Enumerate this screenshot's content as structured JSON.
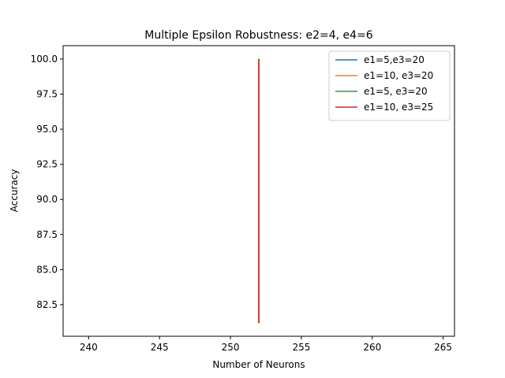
{
  "chart_data": {
    "type": "line",
    "title": "Multiple Epsilon Robustness: e2=4, e4=6",
    "xlabel": "Number of Neurons",
    "ylabel": "Accuracy",
    "xlim": [
      238.2,
      265.8
    ],
    "ylim": [
      80.25,
      100.95
    ],
    "xticks": [
      240,
      245,
      250,
      255,
      260,
      265
    ],
    "yticks": [
      82.5,
      85.0,
      87.5,
      90.0,
      92.5,
      95.0,
      97.5,
      100.0
    ],
    "grid": false,
    "legend_position": "top-right",
    "series": [
      {
        "name": "e1=5,e3=20",
        "color": "#1f77b4",
        "x": [
          252,
          252
        ],
        "y": [
          81.2,
          100.0
        ]
      },
      {
        "name": "e1=10, e3=20",
        "color": "#ff7f0e",
        "x": [
          252,
          252
        ],
        "y": [
          81.2,
          100.0
        ]
      },
      {
        "name": "e1=5, e3=20",
        "color": "#2ca02c",
        "x": [
          252,
          252
        ],
        "y": [
          81.2,
          100.0
        ]
      },
      {
        "name": "e1=10, e3=25",
        "color": "#d62728",
        "x": [
          252,
          252
        ],
        "y": [
          81.2,
          100.0
        ]
      }
    ]
  }
}
